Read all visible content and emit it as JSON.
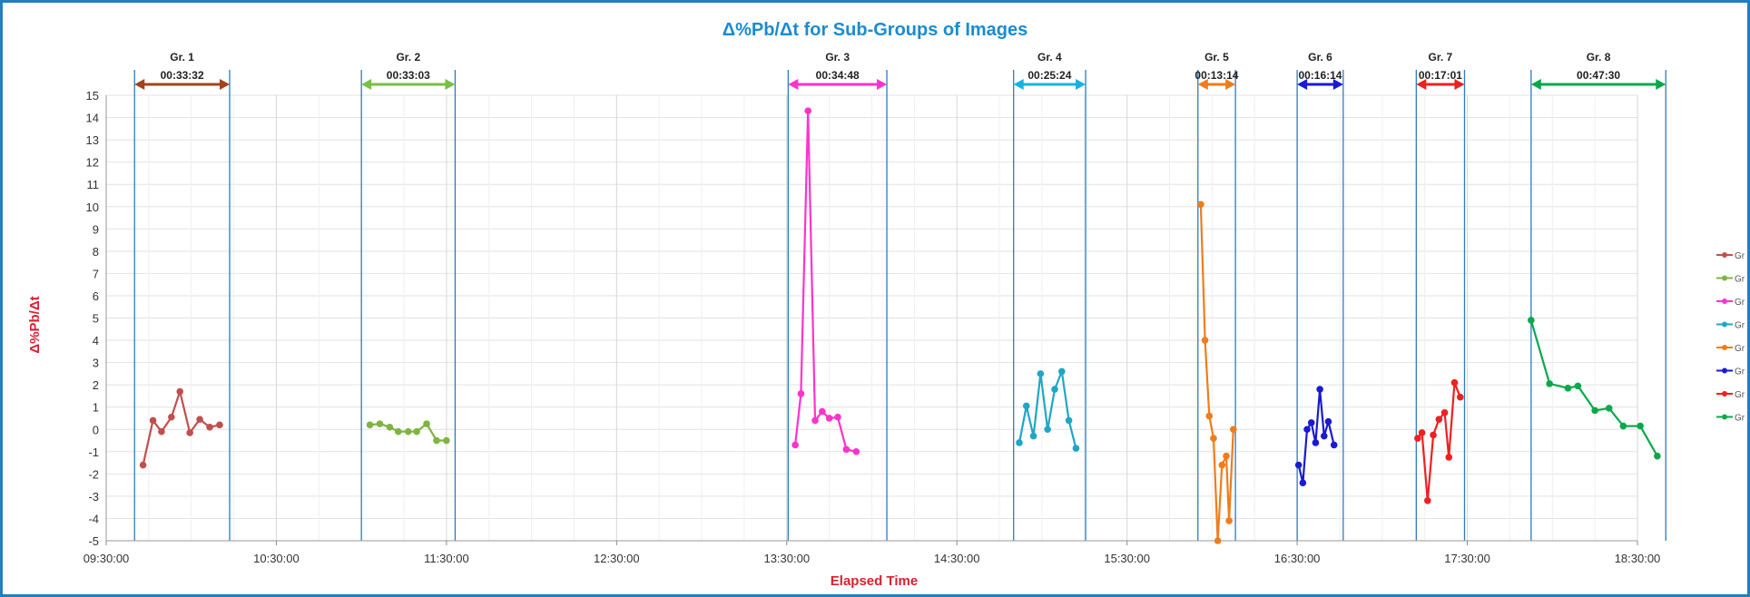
{
  "chart_data": {
    "type": "line",
    "title": "Δ%Pb/Δt for Sub-Groups of Images",
    "xlabel": "Elapsed Time",
    "ylabel": "Δ%Pb/Δt",
    "x_ticks": [
      "09:30:00",
      "10:30:00",
      "11:30:00",
      "12:30:00",
      "13:30:00",
      "14:30:00",
      "15:30:00",
      "16:30:00",
      "17:30:00",
      "18:30:00"
    ],
    "xlim": [
      "09:30:00",
      "18:30:00"
    ],
    "ylim": [
      -5,
      15
    ],
    "y_ticks": [
      -5,
      -4,
      -3,
      -2,
      -1,
      0,
      1,
      2,
      3,
      4,
      5,
      6,
      7,
      8,
      9,
      10,
      11,
      12,
      13,
      14,
      15
    ],
    "grid": true,
    "legend_position": "right",
    "legend_labels": [
      "Gr",
      "Gr",
      "Gr",
      "Gr",
      "Gr",
      "Gr",
      "Gr",
      "Gr"
    ],
    "groups": [
      {
        "label": "Gr. 1",
        "duration": "00:33:32",
        "start": "09:40:00",
        "end": "10:13:32",
        "color": "#a0441a"
      },
      {
        "label": "Gr. 2",
        "duration": "00:33:03",
        "start": "11:00:00",
        "end": "11:33:03",
        "color": "#77c043"
      },
      {
        "label": "Gr. 3",
        "duration": "00:34:48",
        "start": "13:30:30",
        "end": "14:05:18",
        "color": "#ff33cc"
      },
      {
        "label": "Gr. 4",
        "duration": "00:25:24",
        "start": "14:50:00",
        "end": "15:15:24",
        "color": "#14b4e0"
      },
      {
        "label": "Gr. 5",
        "duration": "00:13:14",
        "start": "15:55:00",
        "end": "16:08:14",
        "color": "#f07c1a"
      },
      {
        "label": "Gr. 6",
        "duration": "00:16:14",
        "start": "16:30:00",
        "end": "16:46:14",
        "color": "#1a1ad0"
      },
      {
        "label": "Gr. 7",
        "duration": "00:17:01",
        "start": "17:12:00",
        "end": "17:29:01",
        "color": "#ee2020"
      },
      {
        "label": "Gr. 8",
        "duration": "00:47:30",
        "start": "17:52:30",
        "end": "18:40:00",
        "color": "#0aa84a"
      }
    ],
    "series": [
      {
        "color": "#c0504d",
        "points": [
          [
            "09:43:00",
            -1.6
          ],
          [
            "09:46:30",
            0.4
          ],
          [
            "09:49:30",
            -0.1
          ],
          [
            "09:53:00",
            0.55
          ],
          [
            "09:56:00",
            1.7
          ],
          [
            "09:59:30",
            -0.15
          ],
          [
            "10:03:00",
            0.45
          ],
          [
            "10:06:30",
            0.1
          ],
          [
            "10:10:00",
            0.2
          ]
        ]
      },
      {
        "color": "#7fb342",
        "points": [
          [
            "11:03:00",
            0.2
          ],
          [
            "11:06:30",
            0.25
          ],
          [
            "11:10:00",
            0.1
          ],
          [
            "11:13:00",
            -0.1
          ],
          [
            "11:16:30",
            -0.1
          ],
          [
            "11:19:30",
            -0.1
          ],
          [
            "11:23:00",
            0.25
          ],
          [
            "11:26:30",
            -0.5
          ],
          [
            "11:30:00",
            -0.5
          ]
        ]
      },
      {
        "color": "#ff33cc",
        "points": [
          [
            "13:33:00",
            -0.7
          ],
          [
            "13:35:00",
            1.6
          ],
          [
            "13:37:30",
            14.3
          ],
          [
            "13:40:00",
            0.4
          ],
          [
            "13:42:30",
            0.8
          ],
          [
            "13:45:00",
            0.5
          ],
          [
            "13:48:00",
            0.55
          ],
          [
            "13:51:00",
            -0.9
          ],
          [
            "13:54:30",
            -1.0
          ]
        ]
      },
      {
        "color": "#1fa6c6",
        "points": [
          [
            "14:52:00",
            -0.6
          ],
          [
            "14:54:30",
            1.05
          ],
          [
            "14:57:00",
            -0.3
          ],
          [
            "14:59:30",
            2.5
          ],
          [
            "15:02:00",
            0.0
          ],
          [
            "15:04:30",
            1.8
          ],
          [
            "15:07:00",
            2.6
          ],
          [
            "15:09:30",
            0.4
          ],
          [
            "15:12:00",
            -0.85
          ]
        ]
      },
      {
        "color": "#f07c1a",
        "points": [
          [
            "15:56:00",
            10.1
          ],
          [
            "15:57:30",
            4.0
          ],
          [
            "15:59:00",
            0.6
          ],
          [
            "16:00:30",
            -0.4
          ],
          [
            "16:02:00",
            -5.0
          ],
          [
            "16:03:30",
            -1.6
          ],
          [
            "16:05:00",
            -1.2
          ],
          [
            "16:06:00",
            -4.1
          ],
          [
            "16:07:30",
            0.0
          ]
        ]
      },
      {
        "color": "#1a1ad0",
        "points": [
          [
            "16:30:30",
            -1.6
          ],
          [
            "16:32:00",
            -2.4
          ],
          [
            "16:33:30",
            0.0
          ],
          [
            "16:35:00",
            0.3
          ],
          [
            "16:36:30",
            -0.6
          ],
          [
            "16:38:00",
            1.8
          ],
          [
            "16:39:30",
            -0.3
          ],
          [
            "16:41:00",
            0.35
          ],
          [
            "16:43:00",
            -0.7
          ]
        ]
      },
      {
        "color": "#ee2020",
        "points": [
          [
            "17:12:30",
            -0.4
          ],
          [
            "17:14:00",
            -0.15
          ],
          [
            "17:16:00",
            -3.2
          ],
          [
            "17:18:00",
            -0.25
          ],
          [
            "17:20:00",
            0.45
          ],
          [
            "17:22:00",
            0.75
          ],
          [
            "17:23:30",
            -1.25
          ],
          [
            "17:25:30",
            2.1
          ],
          [
            "17:27:30",
            1.45
          ]
        ]
      },
      {
        "color": "#0aa84a",
        "points": [
          [
            "17:52:30",
            4.9
          ],
          [
            "17:59:00",
            2.05
          ],
          [
            "18:05:30",
            1.85
          ],
          [
            "18:09:00",
            1.95
          ],
          [
            "18:15:00",
            0.85
          ],
          [
            "18:20:00",
            0.95
          ],
          [
            "18:25:00",
            0.15
          ],
          [
            "18:31:00",
            0.15
          ],
          [
            "18:37:00",
            -1.2
          ]
        ]
      }
    ]
  }
}
